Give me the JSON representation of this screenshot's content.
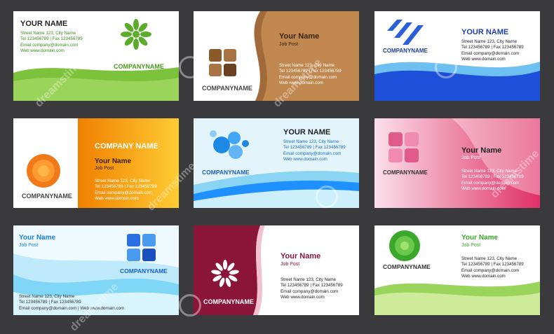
{
  "cards": [
    {
      "name": "YOUR NAME",
      "info": "Street Name 123, City Name\nTel 123456789 | Fax 123456789\nEmail company@domain.com\nWeb www.domain.com",
      "company": "COMPANYNAME",
      "accent": "#6bb82b"
    },
    {
      "name": "Your Name",
      "post": "Job Post",
      "info": "Street Name 123, City Name\nTel 123456789 | Fax 123456789\nEmail company@domain.com\nWeb www.domain.com",
      "company": "COMPANYNAME",
      "accent": "#8b5a2b"
    },
    {
      "name": "YOUR NAME",
      "info": "Street Name 123, City Name\nTel 123456789 | Fax 123456789\nEmail company@domain.com\nWeb www.domain.com",
      "company": "COMPANYNAME",
      "accent": "#1e4fd8"
    },
    {
      "name": "Your Name",
      "post": "Job Post",
      "info": "Street Name 123, City Name\nTel 123456789 | Fax 123456789\nEmail company@domain.com\nWeb www.domain.com",
      "company": "COMPANYNAME",
      "headline": "COMPANY NAME",
      "accent": "#f08a00"
    },
    {
      "name": "YOUR NAME",
      "info": "Street Name 123, City Name\nTel 123456789 | Fax 123456789\nEmail company@domain.com\nWeb www.domain.com",
      "company": "COMPANYNAME",
      "accent": "#1e90ff"
    },
    {
      "name": "Your Name",
      "post": "Job Post",
      "info": "Street Name 123, City Name\nTel 123456789 | Fax 123456789\nEmail company@domain.com\nWeb www.domain.com",
      "company": "COMPANYNAME",
      "accent": "#e0306a"
    },
    {
      "name": "Your Name",
      "post": "Job Post",
      "info": "Street Name 123, City Name\nTel 123456789 | Fax 123456789\nEmail company@domain.com | Web www.domain.com",
      "company": "COMPANYNAME",
      "accent": "#1a7fe0"
    },
    {
      "name": "Your Name",
      "post": "Job Post",
      "info": "Street Name 123, City Name\nTel 123456789 | Fax 123456789\nEmail company@domain.com\nWeb www.domain.com",
      "company": "COMPANYNAME",
      "accent": "#8b1538"
    },
    {
      "name": "Your Name",
      "post": "Job Post",
      "info": "Street Name 123, City Name\nTel 123456789 | Fax 123456789\nEmail company@domain.com\nWeb www.domain.com",
      "company": "COMPANYNAME",
      "accent": "#3aa82a"
    }
  ],
  "watermark": "dreamstime"
}
